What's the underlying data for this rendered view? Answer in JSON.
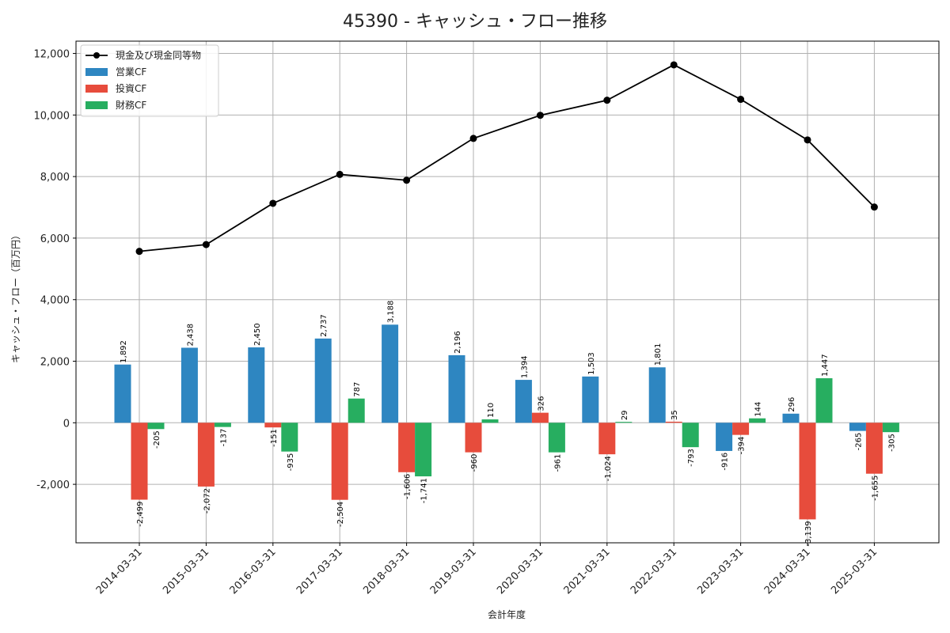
{
  "chart_data": {
    "type": "bar",
    "title": "45390 - キャッシュ・フロー推移",
    "xlabel": "会計年度",
    "ylabel": "キャッシュ・フロー（百万円）",
    "ylim": [
      -3900,
      12400
    ],
    "yticks": [
      -2000,
      0,
      2000,
      4000,
      6000,
      8000,
      10000,
      12000
    ],
    "ytick_labels": [
      "-2,000",
      "0",
      "2,000",
      "4,000",
      "6,000",
      "8,000",
      "10,000",
      "12,000"
    ],
    "grid": true,
    "legend_position": "top-left",
    "categories": [
      "2014-03-31",
      "2015-03-31",
      "2016-03-31",
      "2017-03-31",
      "2018-03-31",
      "2019-03-31",
      "2020-03-31",
      "2021-03-31",
      "2022-03-31",
      "2023-03-31",
      "2024-03-31",
      "2025-03-31"
    ],
    "series": [
      {
        "name": "営業CF",
        "type": "bar",
        "color": "#2e86c1",
        "values": [
          1892,
          2438,
          2450,
          2737,
          3188,
          2196,
          1394,
          1503,
          1801,
          -916,
          296,
          -265
        ],
        "labels": [
          "1,892",
          "2,438",
          "2,450",
          "2,737",
          "3,188",
          "2,196",
          "1,394",
          "1,503",
          "1,801",
          "-916",
          "296",
          "-265"
        ]
      },
      {
        "name": "投資CF",
        "type": "bar",
        "color": "#e74c3c",
        "values": [
          -2499,
          -2072,
          -151,
          -2504,
          -1606,
          -960,
          326,
          -1024,
          35,
          -394,
          -3139,
          -1655
        ],
        "labels": [
          "-2,499",
          "-2,072",
          "-151",
          "-2,504",
          "-1,606",
          "-960",
          "326",
          "-1,024",
          "35",
          "-394",
          "-3,139",
          "-1,655"
        ]
      },
      {
        "name": "財務CF",
        "type": "bar",
        "color": "#27ae60",
        "values": [
          -205,
          -137,
          -935,
          787,
          -1741,
          110,
          -961,
          29,
          -793,
          144,
          1447,
          -305
        ],
        "labels": [
          "-205",
          "-137",
          "-935",
          "787",
          "-1,741",
          "110",
          "-961",
          "29",
          "-793",
          "144",
          "1,447",
          "-305"
        ]
      },
      {
        "name": "現金及び現金同等物",
        "type": "line",
        "color": "#000000",
        "values": [
          5570,
          5790,
          7130,
          8070,
          7880,
          9240,
          9990,
          10480,
          11630,
          10510,
          9190,
          7010
        ]
      }
    ]
  }
}
